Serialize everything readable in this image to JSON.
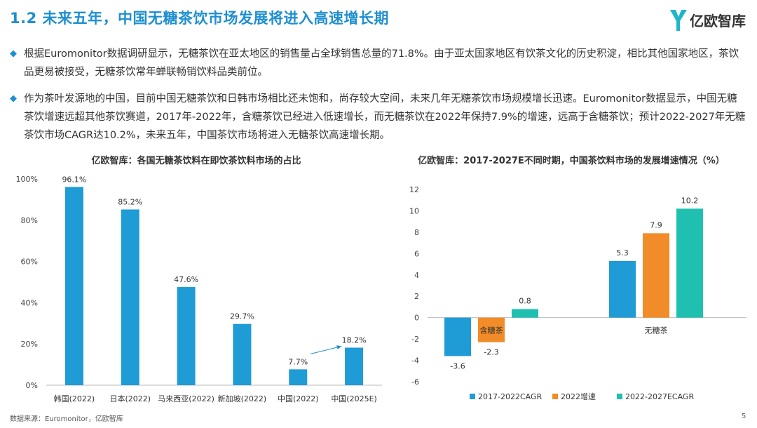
{
  "header": {
    "title": "1.2 未来五年，中国无糖茶饮市场发展将进入高速增长期",
    "logo_text": "亿欧智库"
  },
  "bullets": [
    "根据Euromonitor数据调研显示，无糖茶饮在亚太地区的销售量占全球销售总量的71.8%。由于亚太国家地区有饮茶文化的历史积淀，相比其他国家地区，茶饮品更易被接受，无糖茶饮常年蝉联畅销饮料品类前位。",
    "作为茶叶发源地的中国，目前中国无糖茶饮和日韩市场相比还未饱和，尚存较大空间，未来几年无糖茶饮市场规模增长迅速。Euromonitor数据显示，中国无糖茶饮增速远超其他茶饮赛道，2017年-2022年，含糖茶饮已经进入低速增长，而无糖茶饮在2022年保持7.9%的增速，远高于含糖茶饮；预计2022-2027年无糖茶饮市场CAGR达10.2%，未来五年，中国茶饮市场将进入无糖茶饮高速增长期。"
  ],
  "footer": {
    "source": "数据来源：Euromonitor，亿欧智库",
    "page": "5"
  },
  "colors": {
    "accent": "#1f8fd0",
    "bar_blue": "#1f9bd5",
    "bar_orange": "#f28c28",
    "bar_teal": "#20c0b0"
  },
  "chart_data": [
    {
      "type": "bar",
      "title": "亿欧智库：各国无糖茶饮料在即饮茶饮料市场的占比",
      "categories": [
        "韩国(2022)",
        "日本(2022)",
        "马来西亚(2022)",
        "新加坡(2022)",
        "中国(2022)",
        "中国(2025E)"
      ],
      "values": [
        96.1,
        85.2,
        47.6,
        29.7,
        7.7,
        18.2
      ],
      "value_labels": [
        "96.1%",
        "85.2%",
        "47.6%",
        "29.7%",
        "7.7%",
        "18.2%"
      ],
      "yticks": [
        "0%",
        "20%",
        "40%",
        "60%",
        "80%",
        "100%"
      ],
      "ylim": [
        0,
        100
      ],
      "annotation": "arrow from 中国(2022) to 中国(2025E)"
    },
    {
      "type": "bar",
      "title": "亿欧智库：2017-2027E不同时期，中国茶饮料市场的发展增速情况（%）",
      "categories": [
        "含糖茶",
        "无糖茶"
      ],
      "series": [
        {
          "name": "2017-2022CAGR",
          "values": [
            -3.6,
            5.3
          ]
        },
        {
          "name": "2022增速",
          "values": [
            -2.3,
            7.9
          ]
        },
        {
          "name": "2022-2027ECAGR",
          "values": [
            0.8,
            10.2
          ]
        }
      ],
      "yticks": [
        "-6",
        "-4",
        "-2",
        "0",
        "2",
        "4",
        "6",
        "8",
        "10",
        "12"
      ],
      "ylim": [
        -6,
        12
      ],
      "legend": "bottom"
    }
  ]
}
